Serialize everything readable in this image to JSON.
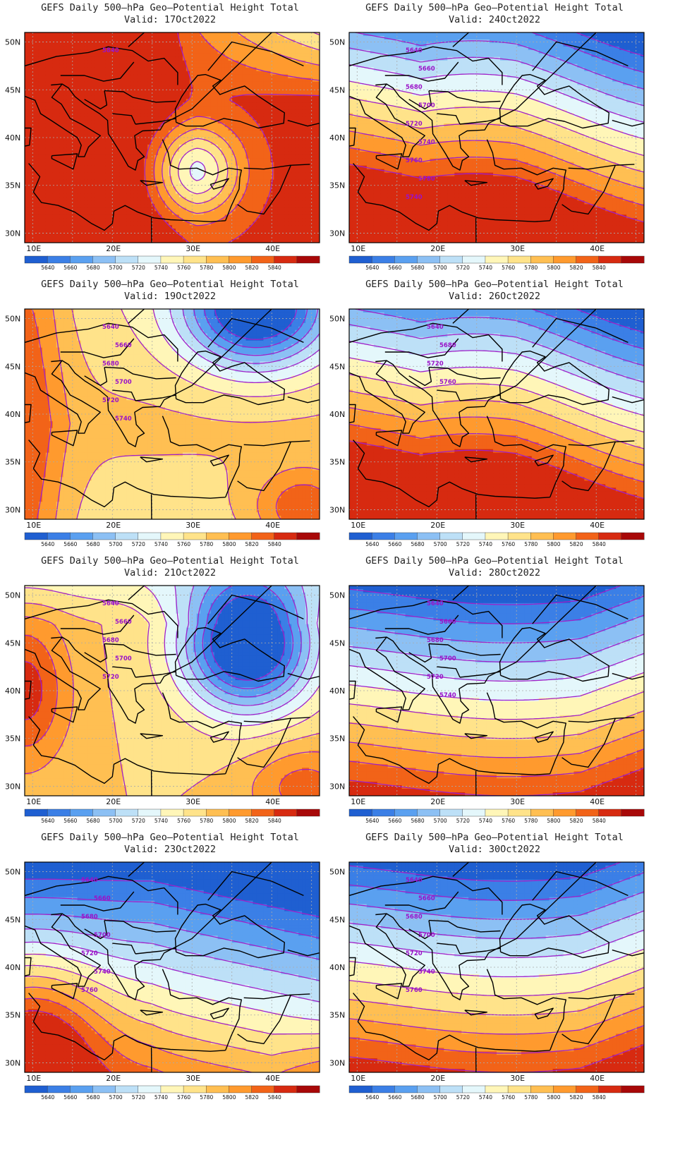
{
  "product_title": "GEFS Daily 500–hPa Geo–Potential Height Total",
  "valid_prefix": "Valid:",
  "panels": [
    {
      "id": "p1",
      "valid_date": "17Oct2022",
      "labels": [
        "5840"
      ],
      "trough_at": 30.5,
      "depth": 100,
      "gradient": 0,
      "scheme": "ridge",
      "contours_labeled": false
    },
    {
      "id": "p2",
      "valid_date": "24Oct2022",
      "labels": [
        "5640",
        "5660",
        "5680",
        "5700",
        "5720",
        "5740",
        "5760",
        "5780",
        "5740"
      ],
      "scheme": "zonal_south_ridge"
    },
    {
      "id": "p3",
      "valid_date": "19Oct2022",
      "labels": [
        "5640",
        "5660",
        "5680",
        "5700",
        "5720",
        "5740"
      ],
      "scheme": "ne_trough_w_ridge"
    },
    {
      "id": "p4",
      "valid_date": "26Oct2022",
      "labels": [
        "5640",
        "5680",
        "5720",
        "5760"
      ],
      "scheme": "zonal_south_ridge"
    },
    {
      "id": "p5",
      "valid_date": "21Oct2022",
      "labels": [
        "5640",
        "5660",
        "5680",
        "5700",
        "5720"
      ],
      "scheme": "east_trough"
    },
    {
      "id": "p6",
      "valid_date": "28Oct2022",
      "labels": [
        "5640",
        "5660",
        "5680",
        "5700",
        "5720",
        "5740"
      ],
      "scheme": "zonal"
    },
    {
      "id": "p7",
      "valid_date": "23Oct2022",
      "labels": [
        "5640",
        "5660",
        "5680",
        "5700",
        "5720",
        "5740",
        "5760"
      ],
      "scheme": "west_ridge"
    },
    {
      "id": "p8",
      "valid_date": "30Oct2022",
      "labels": [
        "5640",
        "5660",
        "5680",
        "5700",
        "5720",
        "5740",
        "5760"
      ],
      "scheme": "zonal"
    }
  ],
  "axes": {
    "lon_ticks": [
      "10E",
      "20E",
      "30E",
      "40E"
    ],
    "lat_ticks": [
      "50N",
      "45N",
      "40N",
      "35N",
      "30N"
    ],
    "lon_range": [
      9,
      46
    ],
    "lat_range": [
      29,
      51
    ]
  },
  "colorbar": {
    "labels": [
      "5640",
      "5660",
      "5680",
      "5700",
      "5720",
      "5740",
      "5760",
      "5780",
      "5800",
      "5820",
      "5840"
    ],
    "colors": [
      "#1f5fd1",
      "#3b7fe6",
      "#5aa0f0",
      "#8cc0f4",
      "#bde0f7",
      "#e4f7fb",
      "#fff6b8",
      "#ffe38a",
      "#ffbf52",
      "#ff9a2e",
      "#f26318",
      "#d72a10",
      "#a80808"
    ]
  },
  "colors": {
    "contour": "#a020c8",
    "label": "#9a12c8",
    "coast": "#000000",
    "grid": "#aaaaaa"
  }
}
